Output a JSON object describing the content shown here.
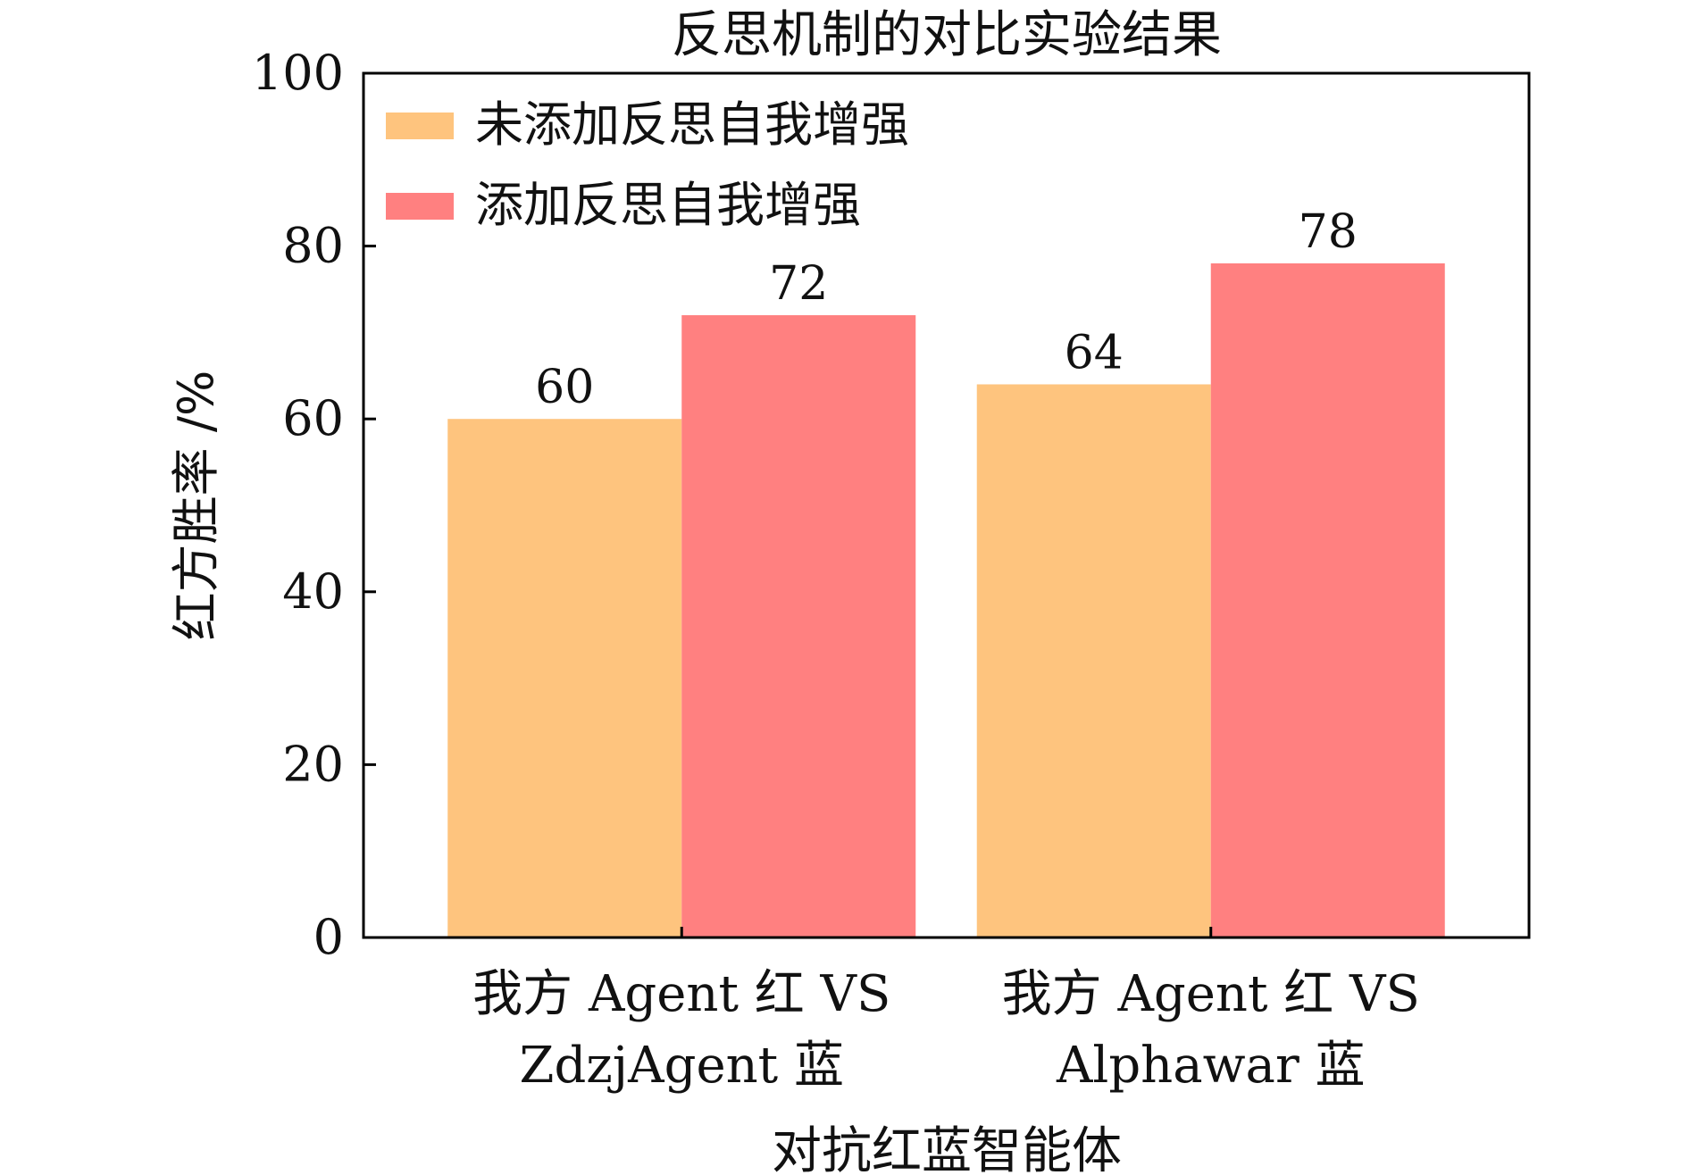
{
  "chart_data": {
    "type": "bar",
    "title": "反思机制的对比实验结果",
    "xlabel": "对抗红蓝智能体",
    "ylabel": "红方胜率 /%",
    "ylim": [
      0,
      100
    ],
    "yticks": [
      0,
      20,
      40,
      60,
      80,
      100
    ],
    "categories": [
      [
        "我方 Agent 红 VS",
        "ZdzjAgent 蓝"
      ],
      [
        "我方 Agent 红 VS",
        "Alphawar 蓝"
      ]
    ],
    "series": [
      {
        "name": "未添加反思自我增强",
        "values": [
          60,
          64
        ],
        "color": "#fec47e"
      },
      {
        "name": "添加反思自我增强",
        "values": [
          72,
          78
        ],
        "color": "#ff8080"
      }
    ],
    "data_labels": true,
    "grid": false,
    "legend_position": "top-left"
  }
}
